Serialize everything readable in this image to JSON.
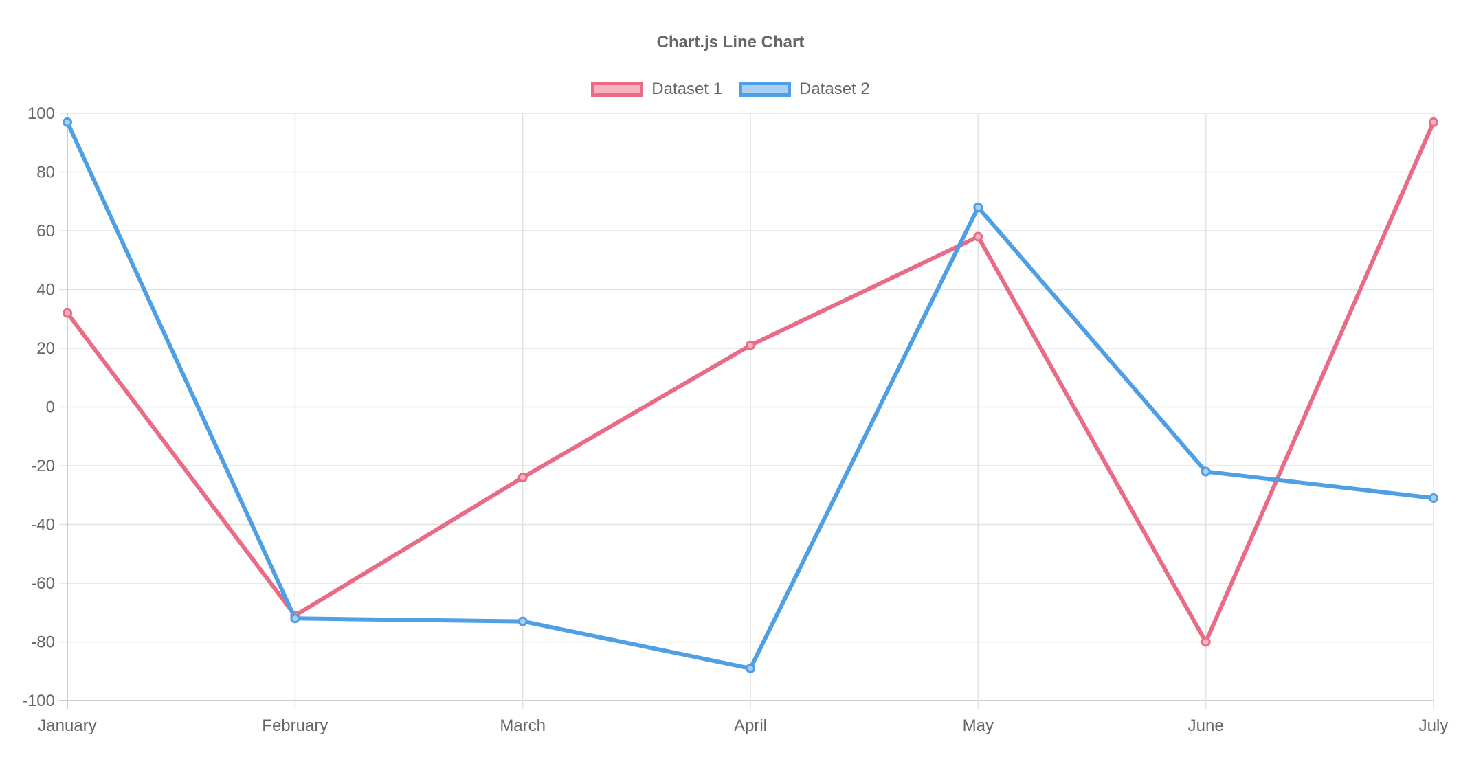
{
  "chart_data": {
    "type": "line",
    "title": "Chart.js Line Chart",
    "categories": [
      "January",
      "February",
      "March",
      "April",
      "May",
      "June",
      "July"
    ],
    "ylim": [
      -100,
      100
    ],
    "yticks": [
      "100",
      "80",
      "60",
      "40",
      "20",
      "0",
      "-20",
      "-40",
      "-60",
      "-80",
      "-100"
    ],
    "grid": true,
    "legend_position": "top",
    "series": [
      {
        "name": "Dataset 1",
        "color": "#e96b85",
        "fill": "#f6b3c0",
        "values": [
          32,
          -71,
          -24,
          21,
          58,
          -80,
          97
        ]
      },
      {
        "name": "Dataset 2",
        "color": "#4e9fe3",
        "fill": "#a9d0f3",
        "values": [
          97,
          -72,
          -73,
          -89,
          68,
          -22,
          -31
        ]
      }
    ]
  }
}
